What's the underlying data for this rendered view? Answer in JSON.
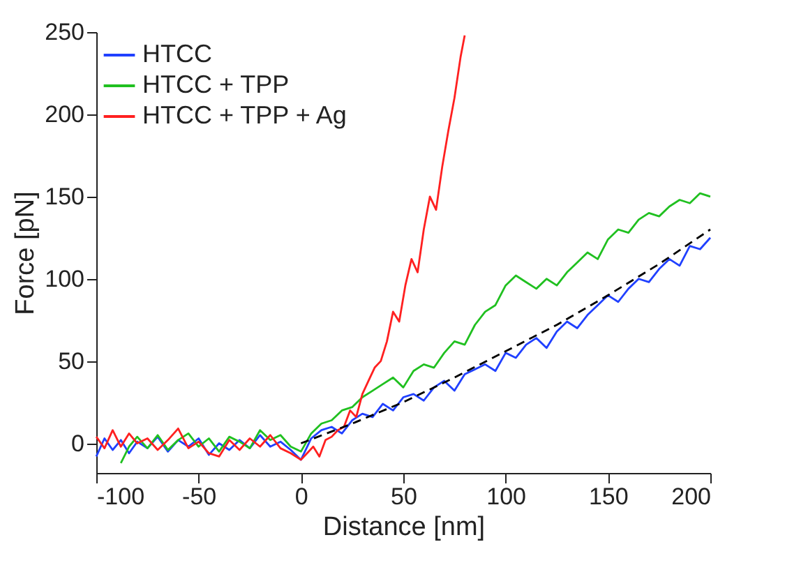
{
  "chart_data": {
    "type": "line",
    "xlabel": "Distance [nm]",
    "ylabel": "Force [pN]",
    "xlim": [
      -100,
      200
    ],
    "ylim": [
      -18,
      250
    ],
    "xticks": [
      -100,
      -50,
      0,
      50,
      100,
      150,
      200
    ],
    "yticks": [
      0,
      50,
      100,
      150,
      200,
      250
    ],
    "grid": false,
    "legend": "top left",
    "marker": "none",
    "line_style": "solid",
    "series": [
      {
        "name": "HTCC",
        "color": "#2040ff",
        "x": [
          -100,
          -96,
          -92,
          -88,
          -84,
          -80,
          -75,
          -70,
          -65,
          -60,
          -55,
          -50,
          -45,
          -40,
          -35,
          -30,
          -25,
          -20,
          -15,
          -10,
          -5,
          0,
          5,
          10,
          15,
          20,
          25,
          30,
          35,
          40,
          45,
          50,
          55,
          60,
          65,
          70,
          75,
          80,
          85,
          90,
          95,
          100,
          105,
          110,
          115,
          120,
          125,
          130,
          135,
          140,
          145,
          150,
          155,
          160,
          165,
          170,
          175,
          180,
          185,
          190,
          195,
          200
        ],
        "values": [
          -8,
          3,
          -4,
          2,
          -6,
          1,
          -3,
          4,
          -5,
          2,
          -2,
          3,
          -7,
          0,
          -4,
          2,
          -3,
          5,
          -2,
          1,
          -4,
          -10,
          3,
          8,
          10,
          6,
          14,
          18,
          16,
          24,
          20,
          28,
          30,
          26,
          34,
          38,
          32,
          42,
          45,
          48,
          44,
          55,
          52,
          60,
          64,
          58,
          68,
          74,
          70,
          78,
          84,
          90,
          86,
          94,
          100,
          98,
          106,
          112,
          108,
          120,
          118,
          125
        ]
      },
      {
        "name": "HTCC + TPP",
        "color": "#20c020",
        "x": [
          -88,
          -84,
          -80,
          -75,
          -70,
          -65,
          -60,
          -55,
          -50,
          -45,
          -40,
          -35,
          -30,
          -25,
          -20,
          -15,
          -10,
          -5,
          0,
          5,
          10,
          15,
          20,
          25,
          30,
          35,
          40,
          45,
          50,
          55,
          60,
          65,
          70,
          75,
          80,
          85,
          90,
          95,
          100,
          105,
          110,
          115,
          120,
          125,
          130,
          135,
          140,
          145,
          150,
          155,
          160,
          165,
          170,
          175,
          180,
          185,
          190,
          195,
          200
        ],
        "values": [
          -12,
          -2,
          4,
          -3,
          5,
          -4,
          2,
          6,
          -2,
          3,
          -5,
          4,
          1,
          -3,
          8,
          2,
          5,
          -2,
          -5,
          6,
          12,
          14,
          20,
          22,
          28,
          32,
          36,
          40,
          34,
          44,
          48,
          46,
          55,
          62,
          60,
          72,
          80,
          84,
          96,
          102,
          98,
          94,
          100,
          96,
          104,
          110,
          116,
          112,
          124,
          130,
          128,
          136,
          140,
          138,
          144,
          148,
          146,
          152,
          150
        ]
      },
      {
        "name": "HTCC + TPP + Ag",
        "color": "#ff2020",
        "x": [
          -100,
          -96,
          -92,
          -88,
          -84,
          -80,
          -75,
          -70,
          -65,
          -60,
          -55,
          -50,
          -45,
          -40,
          -35,
          -30,
          -25,
          -20,
          -15,
          -10,
          -5,
          0,
          3,
          6,
          9,
          12,
          15,
          18,
          21,
          24,
          27,
          30,
          33,
          36,
          39,
          42,
          45,
          48,
          51,
          54,
          57,
          60,
          63,
          66,
          69,
          72,
          75,
          78,
          80
        ],
        "values": [
          4,
          -3,
          8,
          -2,
          6,
          0,
          3,
          -4,
          2,
          9,
          -3,
          1,
          -6,
          -8,
          2,
          -4,
          3,
          -2,
          5,
          -3,
          -6,
          -10,
          -6,
          -2,
          -8,
          2,
          4,
          8,
          10,
          20,
          16,
          30,
          38,
          46,
          50,
          62,
          80,
          74,
          96,
          112,
          104,
          130,
          150,
          142,
          168,
          190,
          210,
          235,
          248
        ]
      },
      {
        "type": "line",
        "color": "#000000",
        "line_style": "dashed",
        "x": [
          0,
          25,
          50,
          75,
          100,
          125,
          150,
          175,
          200
        ],
        "values": [
          0,
          12,
          25,
          40,
          56,
          72,
          90,
          109,
          130
        ]
      }
    ]
  }
}
